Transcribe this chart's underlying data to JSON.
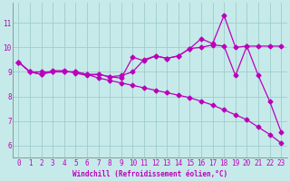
{
  "bg_color": "#c6eaea",
  "grid_color": "#a0cccc",
  "line_color": "#bb00bb",
  "xlabel": "Windchill (Refroidissement éolien,°C)",
  "xlim": [
    -0.5,
    23.5
  ],
  "ylim": [
    5.5,
    11.8
  ],
  "yticks": [
    6,
    7,
    8,
    9,
    10,
    11
  ],
  "xticks": [
    0,
    1,
    2,
    3,
    4,
    5,
    6,
    7,
    8,
    9,
    10,
    11,
    12,
    13,
    14,
    15,
    16,
    17,
    18,
    19,
    20,
    21,
    22,
    23
  ],
  "line1_x": [
    0,
    1,
    2,
    3,
    4,
    5,
    6,
    7,
    8,
    9,
    10,
    11,
    12,
    13,
    14,
    15,
    16,
    17,
    18,
    19,
    20,
    21,
    22,
    23
  ],
  "line1_y": [
    9.4,
    9.0,
    8.9,
    9.05,
    9.05,
    8.95,
    8.85,
    8.9,
    8.8,
    8.75,
    9.6,
    9.45,
    9.65,
    9.55,
    9.65,
    9.95,
    10.35,
    10.15,
    11.3,
    10.0,
    10.05,
    8.85,
    7.8,
    6.55
  ],
  "line2_x": [
    0,
    1,
    2,
    3,
    4,
    5,
    6,
    7,
    8,
    9,
    10,
    11,
    12,
    13,
    14,
    15,
    16,
    17,
    18,
    19,
    20,
    21,
    22,
    23
  ],
  "line2_y": [
    9.4,
    9.0,
    8.9,
    9.0,
    9.0,
    9.0,
    8.9,
    8.9,
    8.8,
    8.85,
    9.0,
    9.5,
    9.65,
    9.55,
    9.65,
    9.95,
    10.0,
    10.1,
    10.05,
    8.85,
    10.05,
    10.05,
    10.05,
    10.05
  ],
  "line3_x": [
    0,
    1,
    2,
    3,
    4,
    5,
    6,
    7,
    8,
    9,
    10,
    11,
    12,
    13,
    14,
    15,
    16,
    17,
    18,
    19,
    20,
    21,
    22,
    23
  ],
  "line3_y": [
    9.4,
    9.0,
    9.0,
    9.0,
    9.0,
    9.0,
    8.9,
    8.75,
    8.65,
    8.55,
    8.45,
    8.35,
    8.25,
    8.15,
    8.05,
    7.95,
    7.8,
    7.65,
    7.45,
    7.25,
    7.05,
    6.75,
    6.45,
    6.1
  ],
  "marker": "D",
  "markersize": 2.5,
  "linewidth": 0.9
}
